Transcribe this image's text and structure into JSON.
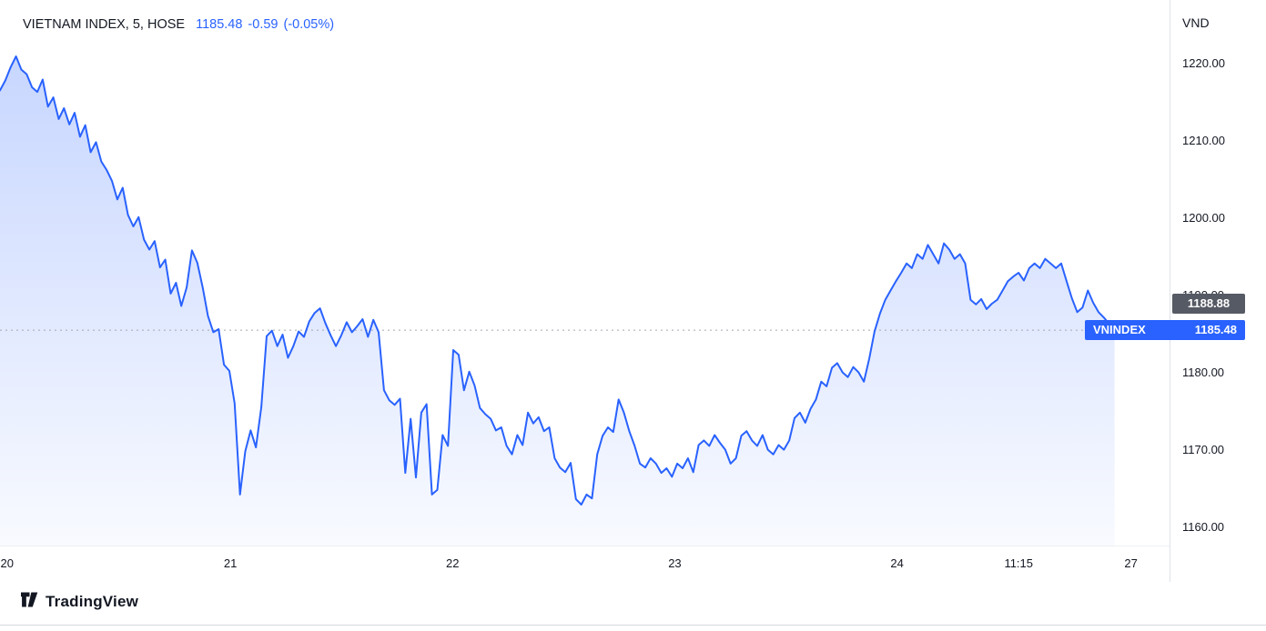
{
  "legend": {
    "symbol_title": "VIETNAM INDEX, 5, HOSE",
    "last_price": "1185.48",
    "change": "-0.59",
    "change_percent": "(-0.05%)"
  },
  "price_axis": {
    "currency_label": "VND",
    "reference_badge_value": "1188.88",
    "symbol_badge_label": "VNINDEX",
    "symbol_badge_value": "1185.48"
  },
  "footer": {
    "logo_text": "TradingView"
  },
  "colors": {
    "accent_blue": "#2962FF",
    "badge_gray": "#565a64",
    "text_dark": "#131722",
    "border": "#e0e3eb",
    "dotted_line": "#a3a6af",
    "area_top": "rgba(41,98,255,0.26)",
    "area_bottom": "rgba(41,98,255,0.03)"
  },
  "chart_data": {
    "type": "area",
    "title": "VIETNAM INDEX, 5, HOSE",
    "interval": "5",
    "exchange": "HOSE",
    "ylabel": "VND",
    "ylim": [
      1157.6,
      1228.2
    ],
    "y_ticks": [
      1160,
      1170,
      1180,
      1190,
      1200,
      1210,
      1220
    ],
    "x_ticks": [
      {
        "label": "20",
        "pos": 0.006
      },
      {
        "label": "21",
        "pos": 0.197
      },
      {
        "label": "22",
        "pos": 0.387
      },
      {
        "label": "23",
        "pos": 0.577
      },
      {
        "label": "24",
        "pos": 0.767
      },
      {
        "label": "11:15",
        "pos": 0.871
      },
      {
        "label": "27",
        "pos": 0.967
      }
    ],
    "last_price": 1185.48,
    "reference_price": 1188.88,
    "change": -0.59,
    "change_percent": -0.05,
    "series_end_fraction": 0.953,
    "grid": false,
    "prices": [
      1216.5,
      1217.8,
      1219.5,
      1220.9,
      1219.2,
      1218.6,
      1216.9,
      1216.3,
      1217.9,
      1214.4,
      1215.6,
      1212.8,
      1214.2,
      1212.1,
      1213.6,
      1210.5,
      1212.0,
      1208.5,
      1209.8,
      1207.3,
      1206.2,
      1204.8,
      1202.4,
      1203.9,
      1200.4,
      1198.9,
      1200.1,
      1197.2,
      1195.9,
      1197.0,
      1193.6,
      1194.6,
      1190.2,
      1191.6,
      1188.6,
      1191.0,
      1195.8,
      1194.2,
      1191.0,
      1187.3,
      1185.2,
      1185.6,
      1181.0,
      1180.2,
      1176.0,
      1164.2,
      1169.8,
      1172.5,
      1170.3,
      1175.5,
      1184.7,
      1185.4,
      1183.4,
      1184.9,
      1181.9,
      1183.4,
      1185.3,
      1184.6,
      1186.6,
      1187.7,
      1188.3,
      1186.4,
      1184.8,
      1183.4,
      1184.8,
      1186.5,
      1185.2,
      1186.0,
      1186.9,
      1184.6,
      1186.8,
      1185.2,
      1177.7,
      1176.4,
      1175.8,
      1176.6,
      1167.0,
      1174.0,
      1166.4,
      1174.8,
      1175.9,
      1164.2,
      1164.8,
      1171.9,
      1170.5,
      1182.9,
      1182.3,
      1177.7,
      1180.1,
      1178.3,
      1175.4,
      1174.6,
      1174.0,
      1172.5,
      1172.9,
      1170.5,
      1169.4,
      1171.9,
      1170.6,
      1174.8,
      1173.4,
      1174.2,
      1172.4,
      1172.9,
      1168.9,
      1167.7,
      1167.1,
      1168.3,
      1163.6,
      1162.9,
      1164.2,
      1163.7,
      1169.4,
      1171.8,
      1172.9,
      1172.3,
      1176.5,
      1174.8,
      1172.4,
      1170.5,
      1168.2,
      1167.7,
      1168.9,
      1168.2,
      1167.0,
      1167.6,
      1166.5,
      1168.2,
      1167.6,
      1168.9,
      1167.1,
      1170.6,
      1171.2,
      1170.5,
      1171.9,
      1170.9,
      1170.0,
      1168.2,
      1168.9,
      1171.8,
      1172.4,
      1171.2,
      1170.5,
      1171.9,
      1170.0,
      1169.4,
      1170.6,
      1170.0,
      1171.2,
      1174.1,
      1174.8,
      1173.5,
      1175.3,
      1176.5,
      1178.8,
      1178.2,
      1180.6,
      1181.2,
      1180.0,
      1179.4,
      1180.7,
      1180.0,
      1178.8,
      1181.8,
      1185.3,
      1187.6,
      1189.4,
      1190.6,
      1191.8,
      1192.9,
      1194.1,
      1193.5,
      1195.3,
      1194.7,
      1196.5,
      1195.3,
      1194.1,
      1196.7,
      1195.9,
      1194.7,
      1195.3,
      1194.1,
      1189.4,
      1188.8,
      1189.5,
      1188.2,
      1188.9,
      1189.4,
      1190.6,
      1191.8,
      1192.4,
      1192.9,
      1191.9,
      1193.5,
      1194.1,
      1193.5,
      1194.7,
      1194.1,
      1193.5,
      1194.1,
      1191.8,
      1189.6,
      1187.8,
      1188.4,
      1190.6,
      1189.0,
      1187.8,
      1187.1,
      1186.3,
      1185.5
    ]
  }
}
